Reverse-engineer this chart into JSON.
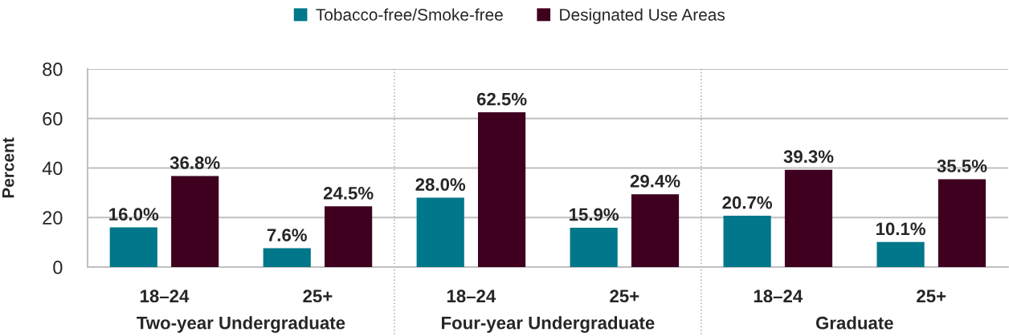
{
  "chart_data": {
    "type": "bar",
    "ylabel": "Percent",
    "categories": [
      "18–24",
      "25+",
      "18–24",
      "25+",
      "18–24",
      "25+"
    ],
    "series": [
      {
        "name": "Tobacco-free/Smoke-free",
        "color": "#00778a",
        "values": [
          16.0,
          7.6,
          28.0,
          15.9,
          20.7,
          10.1
        ],
        "value_labels": [
          "16.0%",
          "7.6%",
          "28.0%",
          "15.9%",
          "20.7%",
          "10.1%"
        ]
      },
      {
        "name": "Designated Use Areas",
        "color": "#3f0020",
        "values": [
          36.8,
          24.5,
          62.5,
          29.4,
          39.3,
          35.5
        ],
        "value_labels": [
          "36.8%",
          "24.5%",
          "62.5%",
          "29.4%",
          "39.3%",
          "35.5%"
        ]
      }
    ],
    "ylim": [
      0,
      80
    ],
    "yticks": [
      0,
      20,
      40,
      60,
      80
    ],
    "grid": "y",
    "legend": "top",
    "annotations": [
      "Two-year Undergraduate",
      "Four-year Undergraduate",
      "Graduate"
    ]
  }
}
